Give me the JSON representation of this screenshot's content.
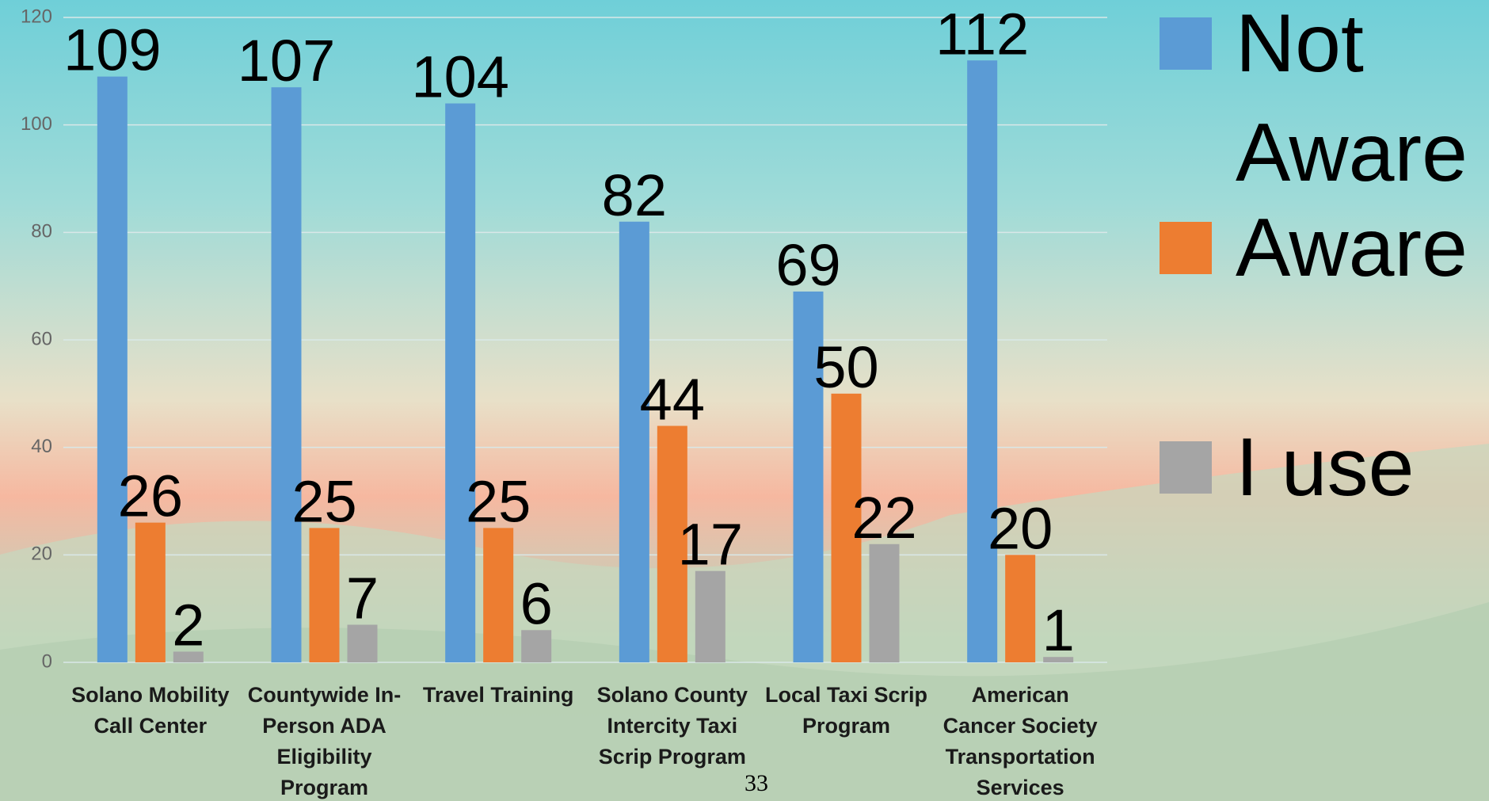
{
  "chart_data": {
    "type": "bar",
    "categories": [
      "Solano Mobility Call Center",
      "Countywide In-Person ADA Eligibility Program",
      "Travel Training",
      "Solano County Intercity Taxi Scrip Program",
      "Local Taxi Scrip Program",
      "American Cancer Society Transportation Services"
    ],
    "series": [
      {
        "name": "Not Aware",
        "color": "#5b9bd5",
        "values": [
          109,
          107,
          104,
          82,
          69,
          112
        ]
      },
      {
        "name": "Aware",
        "color": "#ed7d31",
        "values": [
          26,
          25,
          25,
          44,
          50,
          20
        ]
      },
      {
        "name": "I use",
        "color": "#a5a5a5",
        "values": [
          2,
          7,
          6,
          17,
          22,
          1
        ]
      }
    ],
    "ylim": [
      0,
      120
    ],
    "yticks": [
      0,
      20,
      40,
      60,
      80,
      100,
      120
    ],
    "grid": true,
    "legend": "right",
    "page_number": "33"
  }
}
